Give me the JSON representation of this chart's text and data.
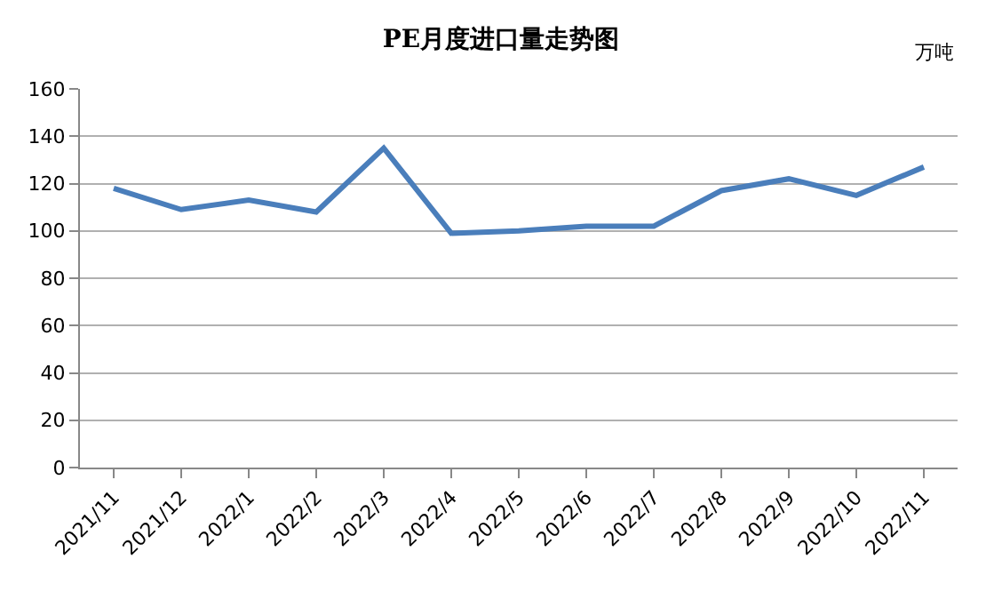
{
  "chart_data": {
    "type": "line",
    "title": "PE月度进口量走势图",
    "ylabel": "万吨",
    "categories": [
      "2021/11",
      "2021/12",
      "2022/1",
      "2022/2",
      "2022/3",
      "2022/4",
      "2022/5",
      "2022/6",
      "2022/7",
      "2022/8",
      "2022/9",
      "2022/10",
      "2022/11"
    ],
    "series": [
      {
        "color": "#4a7ebb",
        "values": [
          118,
          109,
          113,
          108,
          135,
          99,
          100,
          102,
          102,
          117,
          122,
          115,
          127
        ]
      }
    ],
    "ylim": [
      0,
      160
    ],
    "yticks": [
      0,
      20,
      40,
      60,
      80,
      100,
      120,
      140,
      160
    ],
    "grid": "y",
    "marker": "none",
    "line_style": "solid"
  }
}
